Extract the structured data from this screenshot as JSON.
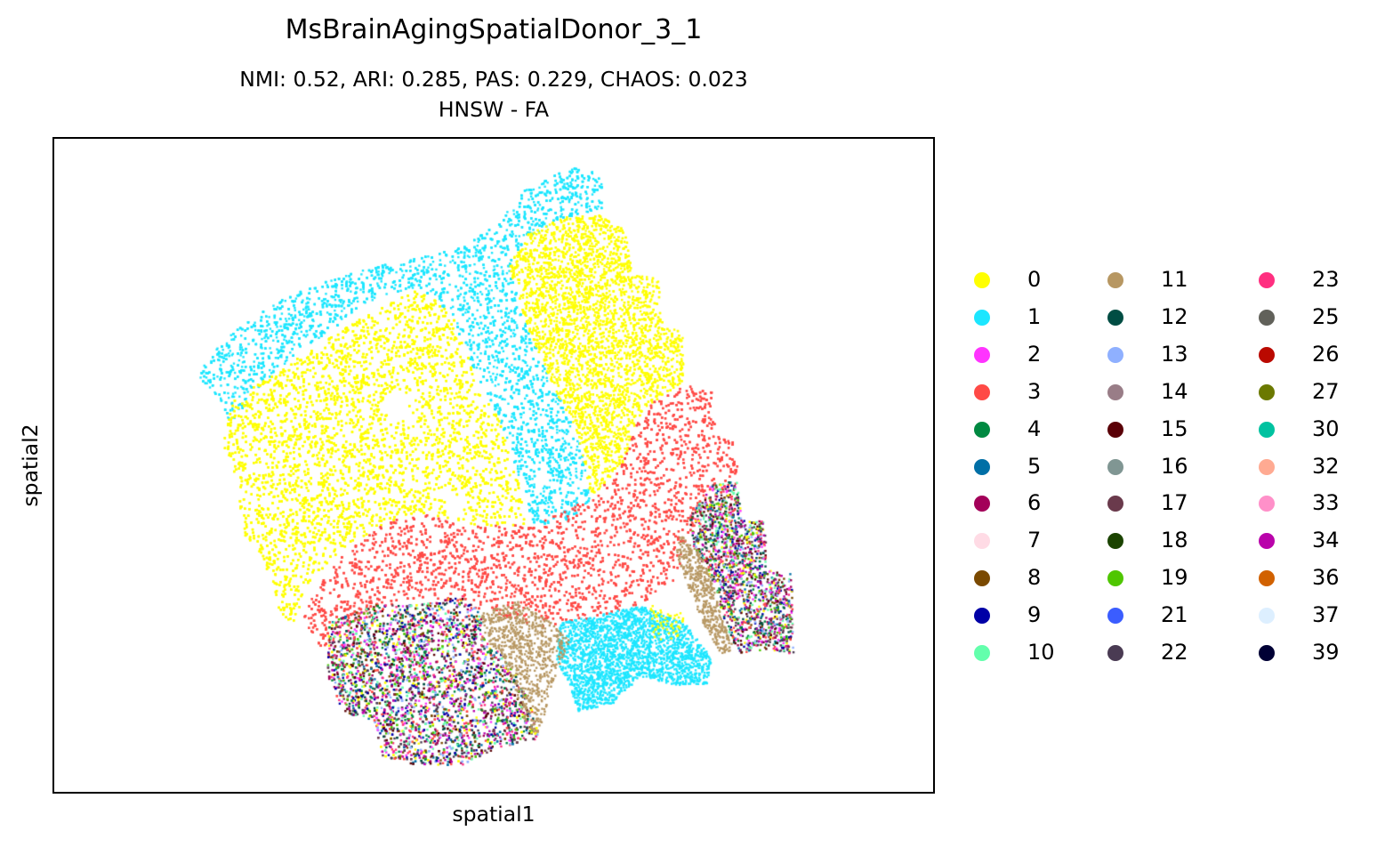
{
  "chart_data": {
    "type": "scatter",
    "title": "MsBrainAgingSpatialDonor_3_1",
    "subtitle": "NMI: 0.52,  ARI: 0.285,  PAS: 0.229,  CHAOS: 0.023",
    "method": "HNSW - FA",
    "xlabel": "spatial1",
    "ylabel": "spatial2",
    "ticks": false,
    "grid": false,
    "legend_position": "right",
    "legend_columns": 3,
    "clusters": [
      {
        "label": "0",
        "color": "#ffff00"
      },
      {
        "label": "1",
        "color": "#1ce6ff"
      },
      {
        "label": "2",
        "color": "#ff34ff"
      },
      {
        "label": "3",
        "color": "#ff4a46"
      },
      {
        "label": "4",
        "color": "#008941"
      },
      {
        "label": "5",
        "color": "#006fa6"
      },
      {
        "label": "6",
        "color": "#a30059"
      },
      {
        "label": "7",
        "color": "#ffdbe5"
      },
      {
        "label": "8",
        "color": "#7a4900"
      },
      {
        "label": "9",
        "color": "#0000a6"
      },
      {
        "label": "10",
        "color": "#63ffac"
      },
      {
        "label": "11",
        "color": "#b79762"
      },
      {
        "label": "12",
        "color": "#004d43"
      },
      {
        "label": "13",
        "color": "#8fb0ff"
      },
      {
        "label": "14",
        "color": "#997d87"
      },
      {
        "label": "15",
        "color": "#5a0007"
      },
      {
        "label": "16",
        "color": "#809693"
      },
      {
        "label": "17",
        "color": "#6a3a4c"
      },
      {
        "label": "18",
        "color": "#1b4400"
      },
      {
        "label": "19",
        "color": "#4fc601"
      },
      {
        "label": "21",
        "color": "#3b5dff"
      },
      {
        "label": "22",
        "color": "#4a3b53"
      },
      {
        "label": "23",
        "color": "#ff2f80"
      },
      {
        "label": "25",
        "color": "#61615a"
      },
      {
        "label": "26",
        "color": "#ba0900"
      },
      {
        "label": "27",
        "color": "#6b7900"
      },
      {
        "label": "30",
        "color": "#00c2a0"
      },
      {
        "label": "32",
        "color": "#ffaa92"
      },
      {
        "label": "33",
        "color": "#ff90c9"
      },
      {
        "label": "34",
        "color": "#b903aa"
      },
      {
        "label": "36",
        "color": "#d16100"
      },
      {
        "label": "37",
        "color": "#ddefff"
      },
      {
        "label": "39",
        "color": "#000035"
      }
    ]
  }
}
